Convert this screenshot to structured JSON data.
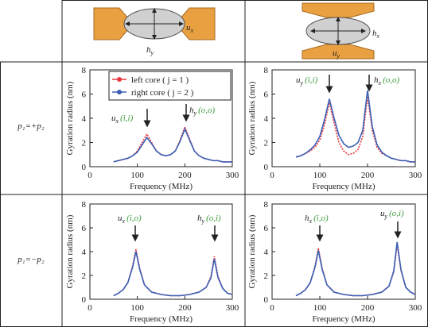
{
  "header": [
    {
      "labels": [
        {
          "text": "u",
          "sub": "x"
        },
        {
          "text": "h",
          "sub": "y"
        }
      ]
    },
    {
      "labels": [
        {
          "text": "h",
          "sub": "x"
        },
        {
          "text": "u",
          "sub": "y"
        }
      ]
    }
  ],
  "row_labels": [
    "p₁=+p₂",
    "p₁=−p₂"
  ],
  "chart_data": [
    {
      "type": "line",
      "xlabel": "Frequency (MHz)",
      "ylabel": "Gyration radius (nm)",
      "xlim": [
        0,
        300
      ],
      "xticks": [
        0,
        100,
        200,
        300
      ],
      "ylim": [
        0,
        8
      ],
      "yticks": [
        0,
        2,
        4,
        6,
        8
      ],
      "legend": "upper right",
      "x": [
        50,
        60,
        70,
        80,
        90,
        100,
        110,
        120,
        130,
        140,
        150,
        160,
        170,
        180,
        190,
        200,
        210,
        220,
        230,
        240,
        250,
        260,
        270,
        280,
        290,
        300
      ],
      "series": [
        {
          "name": "left core ( j = 1 )",
          "color": "#e8383d",
          "values": [
            0.4,
            0.5,
            0.6,
            0.7,
            0.9,
            1.3,
            2.0,
            2.7,
            2.0,
            1.3,
            1.0,
            0.9,
            1.0,
            1.3,
            2.2,
            3.3,
            2.3,
            1.3,
            0.9,
            0.7,
            0.6,
            0.5,
            0.5,
            0.4,
            0.4,
            0.4
          ]
        },
        {
          "name": "right core ( j = 2 )",
          "color": "#3a5fb5",
          "values": [
            0.4,
            0.5,
            0.6,
            0.7,
            0.9,
            1.2,
            1.8,
            2.4,
            1.9,
            1.3,
            1.0,
            0.9,
            1.0,
            1.3,
            2.1,
            3.1,
            2.2,
            1.3,
            0.9,
            0.7,
            0.6,
            0.5,
            0.5,
            0.4,
            0.4,
            0.4
          ]
        }
      ],
      "annotations": [
        {
          "text": "u",
          "sub": "x",
          "mode": "(i,i)"
        },
        {
          "text": "h",
          "sub": "y",
          "mode": "(o,o)"
        }
      ]
    },
    {
      "type": "line",
      "xlabel": "Frequency (MHz)",
      "ylabel": "Gyration radius (nm)",
      "xlim": [
        0,
        300
      ],
      "xticks": [
        0,
        100,
        200,
        300
      ],
      "ylim": [
        0,
        8
      ],
      "yticks": [
        0,
        2,
        4,
        6,
        8
      ],
      "x": [
        50,
        60,
        70,
        80,
        90,
        100,
        110,
        120,
        130,
        140,
        150,
        160,
        170,
        180,
        190,
        200,
        210,
        220,
        230,
        240,
        250,
        260,
        270,
        280,
        290,
        300
      ],
      "series": [
        {
          "name": "left core ( j = 1 )",
          "color": "#e8383d",
          "values": [
            0.8,
            0.9,
            1.1,
            1.3,
            1.6,
            2.2,
            3.5,
            5.3,
            3.6,
            2.0,
            1.3,
            1.0,
            1.1,
            1.4,
            2.5,
            5.8,
            3.0,
            1.6,
            1.1,
            0.9,
            0.7,
            0.6,
            0.5,
            0.5,
            0.4,
            0.4
          ]
        },
        {
          "name": "right core ( j = 2 )",
          "color": "#3a5fb5",
          "values": [
            0.8,
            0.9,
            1.1,
            1.4,
            1.8,
            2.5,
            3.9,
            5.6,
            4.0,
            2.6,
            1.9,
            1.6,
            1.7,
            2.0,
            3.0,
            6.3,
            3.3,
            1.8,
            1.2,
            0.9,
            0.7,
            0.6,
            0.5,
            0.5,
            0.4,
            0.4
          ]
        }
      ],
      "annotations": [
        {
          "text": "u",
          "sub": "y",
          "mode": "(i,i)"
        },
        {
          "text": "h",
          "sub": "x",
          "mode": "(o,o)"
        }
      ]
    },
    {
      "type": "line",
      "xlabel": "Frequency (MHz)",
      "ylabel": "Gyration radius (nm)",
      "xlim": [
        0,
        300
      ],
      "xticks": [
        0,
        100,
        200,
        300
      ],
      "ylim": [
        0,
        8
      ],
      "yticks": [
        0,
        2,
        4,
        6,
        8
      ],
      "x": [
        50,
        60,
        70,
        80,
        90,
        97,
        105,
        115,
        130,
        150,
        170,
        190,
        210,
        230,
        245,
        255,
        262,
        270,
        280,
        290,
        300
      ],
      "series": [
        {
          "name": "left core ( j = 1 )",
          "color": "#e8383d",
          "values": [
            0.3,
            0.5,
            0.8,
            1.4,
            2.8,
            4.2,
            2.6,
            1.2,
            0.6,
            0.4,
            0.3,
            0.3,
            0.4,
            0.6,
            1.0,
            1.9,
            3.6,
            1.9,
            0.9,
            0.5,
            0.4
          ]
        },
        {
          "name": "right core ( j = 2 )",
          "color": "#3a5fb5",
          "values": [
            0.3,
            0.5,
            0.8,
            1.4,
            2.7,
            4.0,
            2.5,
            1.2,
            0.6,
            0.4,
            0.3,
            0.3,
            0.4,
            0.6,
            1.0,
            1.8,
            3.4,
            1.8,
            0.9,
            0.5,
            0.4
          ]
        }
      ],
      "annotations": [
        {
          "text": "u",
          "sub": "x",
          "mode": "(i,o)"
        },
        {
          "text": "h",
          "sub": "y",
          "mode": "(o,i)"
        }
      ]
    },
    {
      "type": "line",
      "xlabel": "Frequency (MHz)",
      "ylabel": "Gyration radius (nm)",
      "xlim": [
        0,
        300
      ],
      "xticks": [
        0,
        100,
        200,
        300
      ],
      "ylim": [
        0,
        8
      ],
      "yticks": [
        0,
        2,
        4,
        6,
        8
      ],
      "x": [
        50,
        60,
        70,
        80,
        90,
        97,
        105,
        115,
        130,
        150,
        170,
        190,
        210,
        230,
        245,
        255,
        262,
        270,
        280,
        290,
        300
      ],
      "series": [
        {
          "name": "left core ( j = 1 )",
          "color": "#e8383d",
          "values": [
            0.3,
            0.5,
            0.8,
            1.4,
            2.8,
            4.3,
            2.6,
            1.2,
            0.6,
            0.4,
            0.3,
            0.3,
            0.4,
            0.6,
            1.1,
            2.3,
            4.6,
            2.4,
            1.0,
            0.6,
            0.4
          ]
        },
        {
          "name": "right core ( j = 2 )",
          "color": "#3a5fb5",
          "values": [
            0.3,
            0.5,
            0.8,
            1.4,
            2.7,
            4.1,
            2.5,
            1.2,
            0.6,
            0.4,
            0.3,
            0.3,
            0.4,
            0.6,
            1.1,
            2.4,
            4.8,
            2.5,
            1.0,
            0.6,
            0.4
          ]
        }
      ],
      "annotations": [
        {
          "text": "h",
          "sub": "x",
          "mode": "(i,o)"
        },
        {
          "text": "u",
          "sub": "y",
          "mode": "(o,i)"
        }
      ]
    }
  ]
}
